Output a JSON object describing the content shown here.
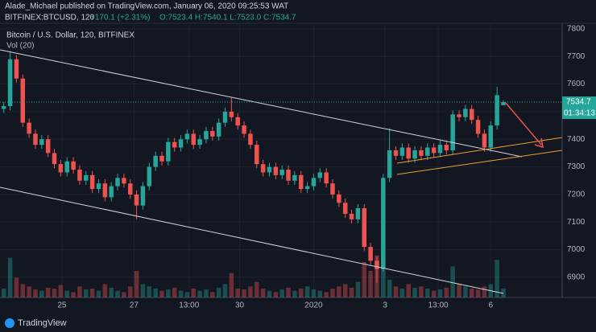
{
  "header": {
    "publisher": "Alade_Michael published on TradingView.com, January 06, 2020 09:25:53 WAT",
    "symbol": "BITFINEX:BTCUSD, 120",
    "change": "+170.1 (+2.31%)",
    "ohlc": "O:7523.4 H:7540.1 L:7523.0 C:7534.7"
  },
  "footer": {
    "brand": "TradingView"
  },
  "chart_data": {
    "type": "candlestick",
    "title": "Bitcoin / U.S. Dollar, 120, BITFINEX",
    "volume_label": "Vol (20)",
    "up_color": "#26a69a",
    "down_color": "#ef5350",
    "open": [
      7510,
      7520,
      7690,
      7620,
      7460,
      7420,
      7380,
      7400,
      7350,
      7310,
      7280,
      7320,
      7290,
      7250,
      7270,
      7220,
      7240,
      7190,
      7230,
      7260,
      7240,
      7200,
      7160,
      7230,
      7300,
      7340,
      7320,
      7390,
      7370,
      7400,
      7420,
      7380,
      7400,
      7430,
      7410,
      7460,
      7500,
      7480,
      7450,
      7420,
      7380,
      7310,
      7280,
      7300,
      7270,
      7290,
      7250,
      7270,
      7220,
      7230,
      7260,
      7280,
      7240,
      7200,
      7170,
      7130,
      7110,
      7150,
      7010,
      6960,
      6930,
      7260,
      7360,
      7340,
      7370,
      7330,
      7360,
      7340,
      7370,
      7350,
      7380,
      7360,
      7490,
      7480,
      7510,
      7470,
      7420,
      7370,
      7450,
      7523.4
    ],
    "high": [
      7535,
      7720,
      7705,
      7635,
      7475,
      7435,
      7415,
      7415,
      7365,
      7325,
      7335,
      7335,
      7305,
      7285,
      7285,
      7255,
      7255,
      7245,
      7275,
      7275,
      7255,
      7215,
      7245,
      7315,
      7355,
      7355,
      7405,
      7405,
      7415,
      7435,
      7435,
      7415,
      7445,
      7445,
      7475,
      7515,
      7550,
      7495,
      7465,
      7435,
      7395,
      7325,
      7315,
      7315,
      7305,
      7305,
      7285,
      7285,
      7245,
      7275,
      7295,
      7295,
      7255,
      7215,
      7185,
      7145,
      7165,
      7165,
      7025,
      6975,
      7275,
      7440,
      7375,
      7385,
      7385,
      7375,
      7375,
      7385,
      7385,
      7395,
      7395,
      7505,
      7505,
      7525,
      7525,
      7485,
      7435,
      7465,
      7590,
      7540.1
    ],
    "low": [
      7495,
      7505,
      7605,
      7445,
      7405,
      7365,
      7365,
      7335,
      7295,
      7265,
      7265,
      7275,
      7235,
      7235,
      7205,
      7205,
      7175,
      7175,
      7215,
      7225,
      7185,
      7110,
      7145,
      7215,
      7285,
      7305,
      7305,
      7355,
      7355,
      7385,
      7365,
      7365,
      7385,
      7395,
      7395,
      7445,
      7465,
      7435,
      7405,
      7365,
      7295,
      7265,
      7265,
      7255,
      7255,
      7235,
      7235,
      7205,
      7205,
      7215,
      7245,
      7225,
      7185,
      7155,
      7115,
      7095,
      7095,
      6995,
      6945,
      6880,
      6920,
      7245,
      7325,
      7325,
      7315,
      7315,
      7325,
      7325,
      7335,
      7335,
      7345,
      7345,
      7465,
      7465,
      7455,
      7405,
      7355,
      7355,
      7435,
      7523.0
    ],
    "close": [
      7520,
      7690,
      7620,
      7460,
      7420,
      7380,
      7400,
      7350,
      7310,
      7280,
      7320,
      7290,
      7250,
      7270,
      7220,
      7240,
      7190,
      7230,
      7260,
      7240,
      7200,
      7160,
      7230,
      7300,
      7340,
      7320,
      7390,
      7370,
      7400,
      7420,
      7380,
      7400,
      7430,
      7410,
      7460,
      7500,
      7480,
      7450,
      7420,
      7380,
      7310,
      7280,
      7300,
      7270,
      7290,
      7250,
      7270,
      7220,
      7230,
      7260,
      7280,
      7240,
      7200,
      7170,
      7130,
      7110,
      7150,
      7010,
      6960,
      6930,
      7260,
      7360,
      7340,
      7370,
      7330,
      7360,
      7340,
      7370,
      7350,
      7380,
      7360,
      7490,
      7480,
      7510,
      7470,
      7420,
      7370,
      7450,
      7560,
      7534.7
    ],
    "volume": [
      20,
      90,
      45,
      30,
      25,
      18,
      15,
      22,
      20,
      28,
      15,
      12,
      25,
      18,
      20,
      15,
      30,
      22,
      15,
      12,
      25,
      60,
      30,
      25,
      20,
      15,
      18,
      22,
      15,
      12,
      20,
      15,
      18,
      12,
      22,
      30,
      55,
      20,
      18,
      25,
      35,
      20,
      15,
      12,
      18,
      22,
      15,
      20,
      25,
      18,
      15,
      12,
      20,
      25,
      30,
      22,
      35,
      80,
      60,
      95,
      100,
      40,
      25,
      20,
      30,
      22,
      25,
      20,
      15,
      18,
      22,
      70,
      30,
      25,
      20,
      18,
      25,
      30,
      85,
      20
    ],
    "xticks": [
      {
        "value": 9.2,
        "label": "25"
      },
      {
        "value": 20.6,
        "label": "27"
      },
      {
        "value": 29.3,
        "label": "13:00"
      },
      {
        "value": 37.3,
        "label": "30"
      },
      {
        "value": 49,
        "label": "2020"
      },
      {
        "value": 60.3,
        "label": "3"
      },
      {
        "value": 68.7,
        "label": "13:00"
      },
      {
        "value": 77,
        "label": "6"
      }
    ],
    "xlim": [
      -0.6,
      88.3
    ],
    "ylim": [
      6827,
      7820
    ],
    "yticks": [
      6900,
      7000,
      7100,
      7200,
      7300,
      7400,
      7500,
      7600,
      7700,
      7800
    ],
    "last_price": 7534.7,
    "last_price_label": "7534.7",
    "countdown": "01:34:13"
  }
}
